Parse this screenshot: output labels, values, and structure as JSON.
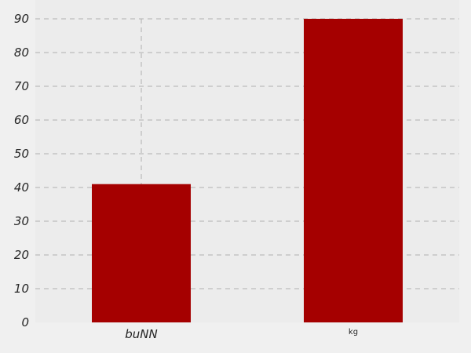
{
  "chart_data": {
    "type": "bar",
    "title": "",
    "xlabel": "",
    "ylabel": "",
    "categories": [
      "buNN",
      "kg"
    ],
    "values": [
      41,
      90
    ],
    "ylim": [
      0,
      90
    ],
    "yticks": [
      0,
      10,
      20,
      30,
      40,
      50,
      60,
      70,
      80,
      90
    ],
    "yticks_text": [
      "0",
      "10",
      "20",
      "30",
      "40",
      "50",
      "60",
      "70",
      "80",
      "90"
    ],
    "grid": true,
    "bar_color": "#a50000",
    "plot_background": "#ececec",
    "figure_background": "#f0f0f0",
    "grid_color": "#b0b0b0"
  }
}
